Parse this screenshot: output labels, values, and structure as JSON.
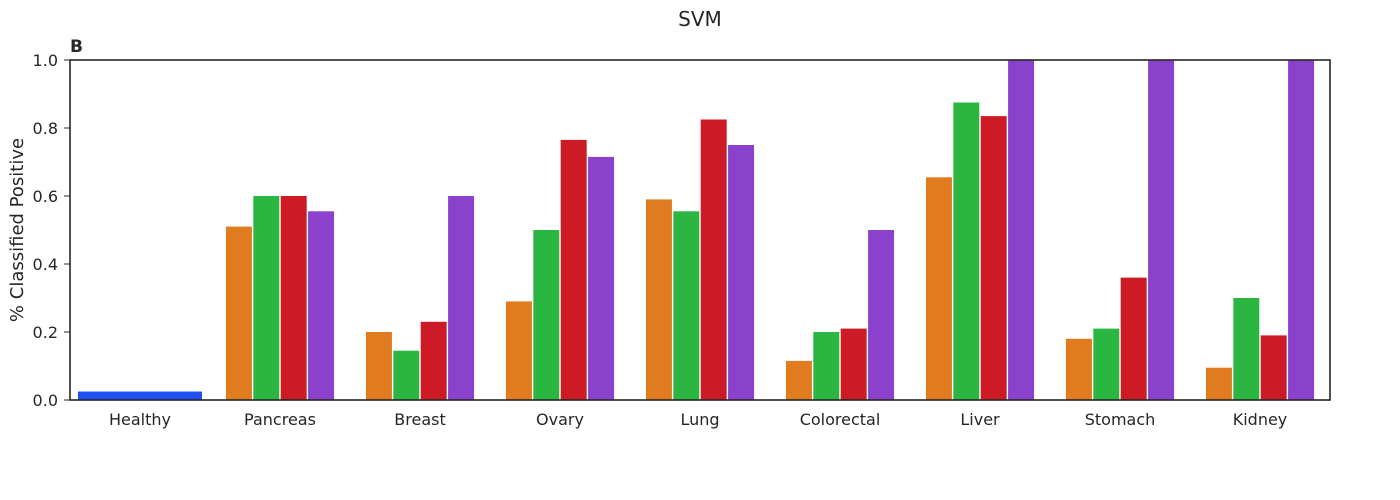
{
  "chart_data": {
    "type": "bar",
    "title": "SVM",
    "panel_label": "B",
    "xlabel": "",
    "ylabel": "% Classified Positive",
    "ylim": [
      0,
      1.0
    ],
    "yticks": [
      "0.0",
      "0.2",
      "0.4",
      "0.6",
      "0.8",
      "1.0"
    ],
    "ytick_values": [
      0,
      0.2,
      0.4,
      0.6,
      0.8,
      1.0
    ],
    "grid": false,
    "categories": [
      "Healthy",
      "Pancreas",
      "Breast",
      "Ovary",
      "Lung",
      "Colorectal",
      "Liver",
      "Stomach",
      "Kidney"
    ],
    "healthy": {
      "value": 0.025,
      "color": "#1f4ff0"
    },
    "series": [
      {
        "color": "#e07b20",
        "values": [
          null,
          0.51,
          0.2,
          0.29,
          0.59,
          0.115,
          0.655,
          0.18,
          0.095
        ]
      },
      {
        "color": "#2bb541",
        "values": [
          null,
          0.6,
          0.145,
          0.5,
          0.555,
          0.2,
          0.875,
          0.21,
          0.3
        ]
      },
      {
        "color": "#cc1b24",
        "values": [
          null,
          0.6,
          0.23,
          0.765,
          0.825,
          0.21,
          0.835,
          0.36,
          0.19
        ]
      },
      {
        "color": "#8a42cc",
        "values": [
          null,
          0.555,
          0.6,
          0.715,
          0.75,
          0.5,
          1.0,
          1.0,
          1.0
        ]
      }
    ]
  }
}
